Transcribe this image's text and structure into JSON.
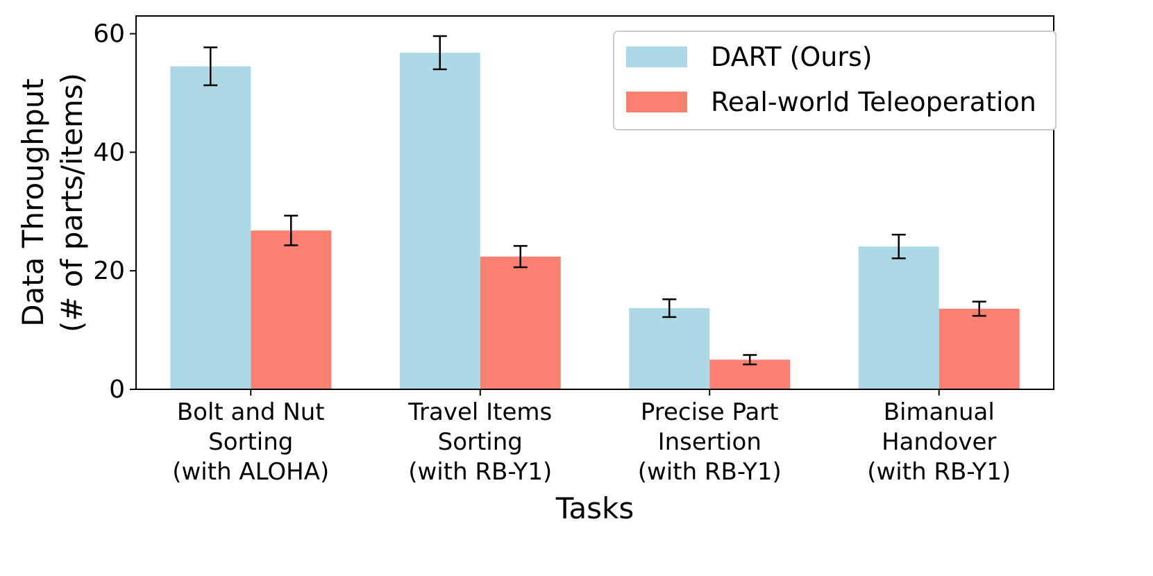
{
  "chart_data": {
    "type": "bar",
    "categories": [
      [
        "Bolt and Nut",
        "Sorting",
        "(with ALOHA)"
      ],
      [
        "Travel Items",
        "Sorting",
        "(with RB-Y1)"
      ],
      [
        "Precise Part",
        "Insertion",
        "(with RB-Y1)"
      ],
      [
        "Bimanual",
        "Handover",
        "(with RB-Y1)"
      ]
    ],
    "series": [
      {
        "name": "DART (Ours)",
        "color": "#add8e6",
        "values": [
          54.5,
          56.8,
          13.7,
          24.1
        ],
        "errors": [
          3.2,
          2.8,
          1.5,
          2.0
        ]
      },
      {
        "name": "Real-world Teleoperation",
        "color": "#fa8072",
        "values": [
          26.8,
          22.4,
          5.0,
          13.6
        ],
        "errors": [
          2.5,
          1.8,
          0.8,
          1.2
        ]
      }
    ],
    "title": "",
    "xlabel": "Tasks",
    "ylabel": [
      "Data Throughput",
      "(# of parts/items)"
    ],
    "ylim": [
      0,
      63
    ],
    "yticks": [
      0,
      20,
      40,
      60
    ],
    "grid": false,
    "legend_position": "top-right"
  }
}
